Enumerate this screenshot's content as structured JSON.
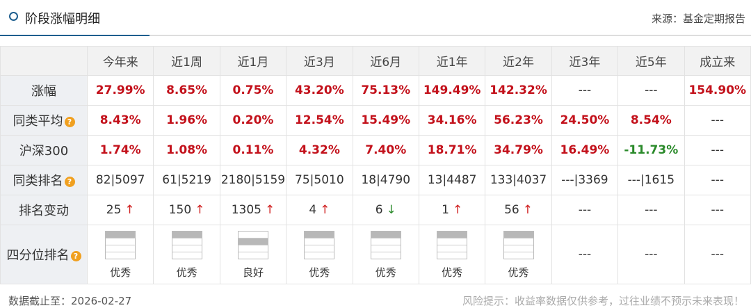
{
  "header": {
    "title": "阶段涨幅明细",
    "source": "来源：基金定期报告"
  },
  "table": {
    "columns": [
      "今年来",
      "近1周",
      "近1月",
      "近3月",
      "近6月",
      "近1年",
      "近2年",
      "近3年",
      "近5年",
      "成立来"
    ],
    "rows": [
      {
        "label": "涨幅",
        "cells": [
          "27.99%",
          "8.65%",
          "0.75%",
          "43.20%",
          "75.13%",
          "149.49%",
          "142.32%",
          "---",
          "---",
          "154.90%"
        ]
      },
      {
        "label": "同类平均",
        "help": true,
        "cells": [
          "8.43%",
          "1.96%",
          "0.20%",
          "12.54%",
          "15.49%",
          "34.16%",
          "56.23%",
          "24.50%",
          "8.54%",
          "---"
        ]
      },
      {
        "label": "沪深300",
        "cells": [
          "1.74%",
          "1.08%",
          "0.11%",
          "4.32%",
          "7.40%",
          "18.71%",
          "34.79%",
          "16.49%",
          "-11.73%",
          "---"
        ]
      },
      {
        "label": "同类排名",
        "help": true,
        "cells": [
          "82|5097",
          "61|5219",
          "2180|5159",
          "75|5010",
          "18|4790",
          "13|4487",
          "133|4037",
          "---|3369",
          "---|1615",
          "---"
        ]
      },
      {
        "label": "排名变动",
        "cells": [
          {
            "value": "25",
            "dir": "up"
          },
          {
            "value": "150",
            "dir": "up"
          },
          {
            "value": "1305",
            "dir": "up"
          },
          {
            "value": "4",
            "dir": "up"
          },
          {
            "value": "6",
            "dir": "down"
          },
          {
            "value": "1",
            "dir": "up"
          },
          {
            "value": "56",
            "dir": "up"
          },
          "---",
          "---",
          "---"
        ]
      },
      {
        "label": "四分位排名",
        "help": true,
        "cells": [
          {
            "quartile": 1,
            "label": "优秀"
          },
          {
            "quartile": 1,
            "label": "优秀"
          },
          {
            "quartile": 2,
            "label": "良好"
          },
          {
            "quartile": 1,
            "label": "优秀"
          },
          {
            "quartile": 1,
            "label": "优秀"
          },
          {
            "quartile": 1,
            "label": "优秀"
          },
          {
            "quartile": 1,
            "label": "优秀"
          },
          "---",
          "---",
          "---"
        ]
      }
    ]
  },
  "footer": {
    "date": "数据截止至：2026-02-27",
    "risk": "风险提示：收益率数据仅供参考，过往业绩不预示未来表现！"
  }
}
